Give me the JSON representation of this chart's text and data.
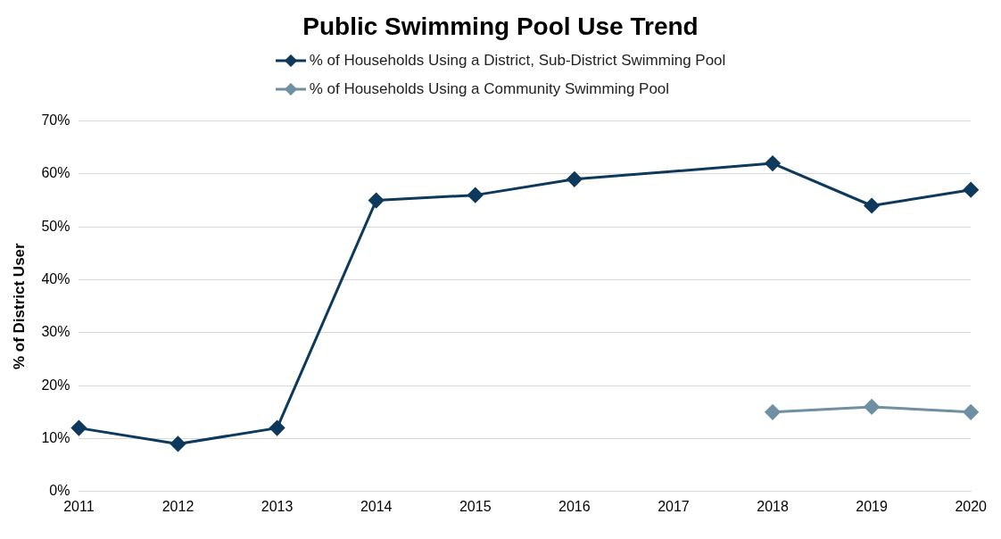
{
  "chart_data": {
    "type": "line",
    "title": "Public Swimming Pool Use Trend",
    "ylabel": "% of District User",
    "categories": [
      "2011",
      "2012",
      "2013",
      "2014",
      "2015",
      "2016",
      "2017",
      "2018",
      "2019",
      "2020"
    ],
    "series": [
      {
        "name": "% of Households Using a District, Sub-District Swimming Pool",
        "color": "#0d3a5c",
        "values": [
          12,
          9,
          12,
          55,
          56,
          59,
          null,
          62,
          54,
          57
        ]
      },
      {
        "name": "% of Households Using a Community Swimming Pool",
        "color": "#6f8fa3",
        "values": [
          null,
          null,
          null,
          null,
          null,
          null,
          null,
          15,
          16,
          15
        ]
      }
    ],
    "ylim": [
      0,
      70
    ],
    "yticks": [
      {
        "value": 0,
        "label": "0%"
      },
      {
        "value": 10,
        "label": "10%"
      },
      {
        "value": 20,
        "label": "20%"
      },
      {
        "value": 30,
        "label": "30%"
      },
      {
        "value": 40,
        "label": "40%"
      },
      {
        "value": 50,
        "label": "50%"
      },
      {
        "value": 60,
        "label": "60%"
      },
      {
        "value": 70,
        "label": "70%"
      }
    ],
    "grid": "y",
    "legend": "top",
    "marker": "diamond",
    "line_style": "solid"
  }
}
